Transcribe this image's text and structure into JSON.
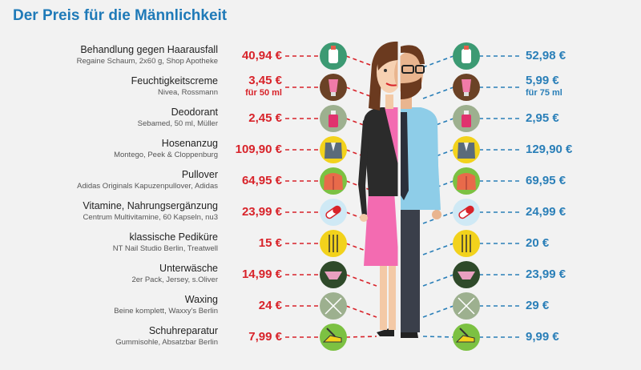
{
  "title": "Der Preis für die Männlichkeit",
  "colors": {
    "women": "#d8232a",
    "men": "#2a7fb8",
    "title": "#1f7ab8"
  },
  "items": [
    {
      "name": "Behandlung gegen Haarausfall",
      "desc": "Regaine Schaum, 2x60 g, Shop Apotheke",
      "price_w": "40,94 €",
      "note_w": "",
      "price_m": "52,98 €",
      "note_m": "",
      "icon": "foam-bottle-icon",
      "circle": "#3c9a73"
    },
    {
      "name": "Feuchtigkeitscreme",
      "desc": "Nivea, Rossmann",
      "price_w": "3,45 €",
      "note_w": "für 50 ml",
      "price_m": "5,99 €",
      "note_m": "für 75 ml",
      "icon": "cream-tube-icon",
      "circle": "#6b4226"
    },
    {
      "name": "Deodorant",
      "desc": "Sebamed, 50 ml, Müller",
      "price_w": "2,45 €",
      "note_w": "",
      "price_m": "2,95 €",
      "note_m": "",
      "icon": "deodorant-icon",
      "circle": "#9db08f"
    },
    {
      "name": "Hosenanzug",
      "desc": "Montego, Peek & Cloppenburg",
      "price_w": "109,90 €",
      "note_w": "",
      "price_m": "129,90 €",
      "note_m": "",
      "icon": "suit-jacket-icon",
      "circle": "#f2d21c"
    },
    {
      "name": "Pullover",
      "desc": "Adidas Originals Kapuzenpullover, Adidas",
      "price_w": "64,95 €",
      "note_w": "",
      "price_m": "69,95 €",
      "note_m": "",
      "icon": "hoodie-icon",
      "circle": "#7cc142"
    },
    {
      "name": "Vitamine, Nahrungsergänzung",
      "desc": "Centrum Multivitamine, 60 Kapseln, nu3",
      "price_w": "23,99 €",
      "note_w": "",
      "price_m": "24,99 €",
      "note_m": "",
      "icon": "pill-icon",
      "circle": "#cfe9f5"
    },
    {
      "name": "klassische Pediküre",
      "desc": "NT Nail Studio Berlin, Treatwell",
      "price_w": "15 €",
      "note_w": "",
      "price_m": "20 €",
      "note_m": "",
      "icon": "pedicure-tools-icon",
      "circle": "#f2d21c"
    },
    {
      "name": "Unterwäsche",
      "desc": "2er Pack, Jersey, s.Oliver",
      "price_w": "14,99 €",
      "note_w": "",
      "price_m": "23,99 €",
      "note_m": "",
      "icon": "underwear-icon",
      "circle": "#2f4a2a"
    },
    {
      "name": "Waxing",
      "desc": "Beine komplett, Waxxy's Berlin",
      "price_w": "24 €",
      "note_w": "",
      "price_m": "29 €",
      "note_m": "",
      "icon": "waxing-icon",
      "circle": "#9db08f"
    },
    {
      "name": "Schuhreparatur",
      "desc": "Gummisohle, Absatzbar Berlin",
      "price_w": "7,99 €",
      "note_w": "",
      "price_m": "9,99 €",
      "note_m": "",
      "icon": "shoe-repair-icon",
      "circle": "#7cc142"
    }
  ]
}
